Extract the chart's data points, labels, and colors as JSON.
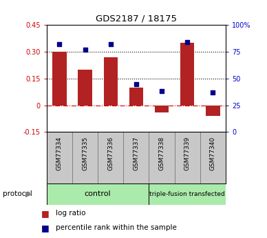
{
  "title": "GDS2187 / 18175",
  "samples": [
    "GSM77334",
    "GSM77335",
    "GSM77336",
    "GSM77337",
    "GSM77338",
    "GSM77339",
    "GSM77340"
  ],
  "log_ratio": [
    0.3,
    0.2,
    0.27,
    0.1,
    -0.04,
    0.35,
    -0.06
  ],
  "percentile_rank": [
    82,
    77,
    82,
    45,
    38,
    84,
    37
  ],
  "left_ylim": [
    -0.15,
    0.45
  ],
  "right_ylim": [
    0,
    100
  ],
  "left_yticks": [
    -0.15,
    0,
    0.15,
    0.3,
    0.45
  ],
  "right_yticks": [
    0,
    25,
    50,
    75,
    100
  ],
  "left_ytick_labels": [
    "-0.15",
    "0",
    "0.15",
    "0.30",
    "0.45"
  ],
  "right_ytick_labels": [
    "0",
    "25",
    "50",
    "75",
    "100%"
  ],
  "hlines": [
    0.15,
    0.3
  ],
  "bar_color": "#B22222",
  "dot_color": "#00008B",
  "zero_line_color": "#CC0000",
  "bar_width": 0.55,
  "plot_bg": "#FFFFFF",
  "tick_label_color_left": "#CC0000",
  "tick_label_color_right": "#0000CC",
  "legend_items": [
    {
      "label": "log ratio",
      "color": "#B22222"
    },
    {
      "label": "percentile rank within the sample",
      "color": "#00008B"
    }
  ]
}
